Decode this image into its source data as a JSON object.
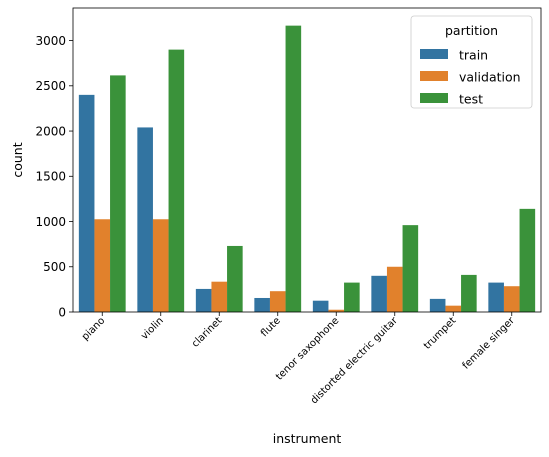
{
  "chart_data": {
    "type": "bar",
    "title": "",
    "xlabel": "instrument",
    "ylabel": "count",
    "ylim": [
      0,
      3360
    ],
    "yticks": [
      0,
      500,
      1000,
      1500,
      2000,
      2500,
      3000
    ],
    "grid": false,
    "legend": {
      "title": "partition",
      "placement": "top-right"
    },
    "categories": [
      "piano",
      "violin",
      "clarinet",
      "flute",
      "tenor saxophone",
      "distorted electric guitar",
      "trumpet",
      "female singer"
    ],
    "series": [
      {
        "name": "train",
        "color": "#3274a1",
        "values": [
          2400,
          2040,
          255,
          155,
          125,
          400,
          145,
          325
        ]
      },
      {
        "name": "validation",
        "color": "#e1812c",
        "values": [
          1025,
          1025,
          335,
          230,
          25,
          500,
          70,
          285
        ]
      },
      {
        "name": "test",
        "color": "#3a923a",
        "values": [
          2615,
          2900,
          730,
          3165,
          325,
          960,
          410,
          1140
        ]
      }
    ]
  }
}
